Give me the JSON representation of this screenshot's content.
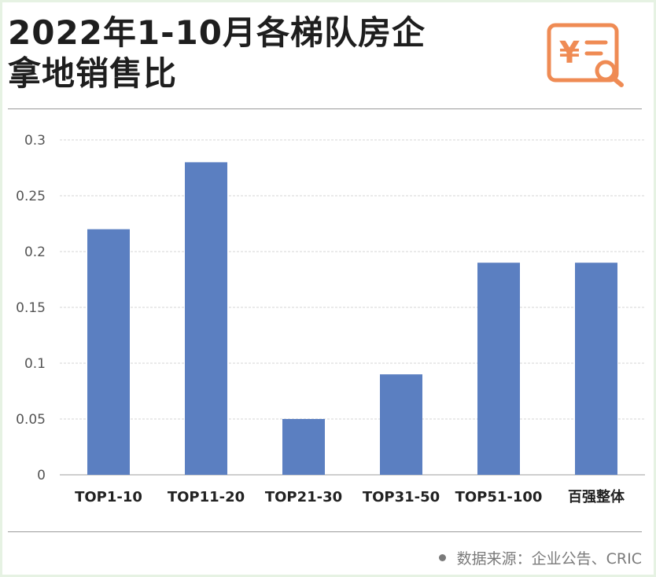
{
  "header": {
    "title_line1": "2022年1-10月各梯队房企",
    "title_line2": "拿地销售比"
  },
  "logo": {
    "icon": "receipt-search-icon",
    "color": "#ef8b54"
  },
  "chart_data": {
    "type": "bar",
    "title": "2022年1-10月各梯队房企拿地销售比",
    "categories": [
      "TOP1-10",
      "TOP11-20",
      "TOP21-30",
      "TOP31-50",
      "TOP51-100",
      "百强整体"
    ],
    "values": [
      0.22,
      0.28,
      0.05,
      0.09,
      0.19,
      0.19
    ],
    "ylim": [
      0,
      0.3
    ],
    "yticks": [
      "0",
      "0.05",
      "0.1",
      "0.15",
      "0.2",
      "0.25",
      "0.3"
    ],
    "xlabel": "",
    "ylabel": "",
    "grid": true,
    "bar_color": "#5b7fc1",
    "grid_color": "#d6d6d6",
    "legend": false
  },
  "footer": {
    "source": "数据来源：企业公告、CRIC"
  }
}
